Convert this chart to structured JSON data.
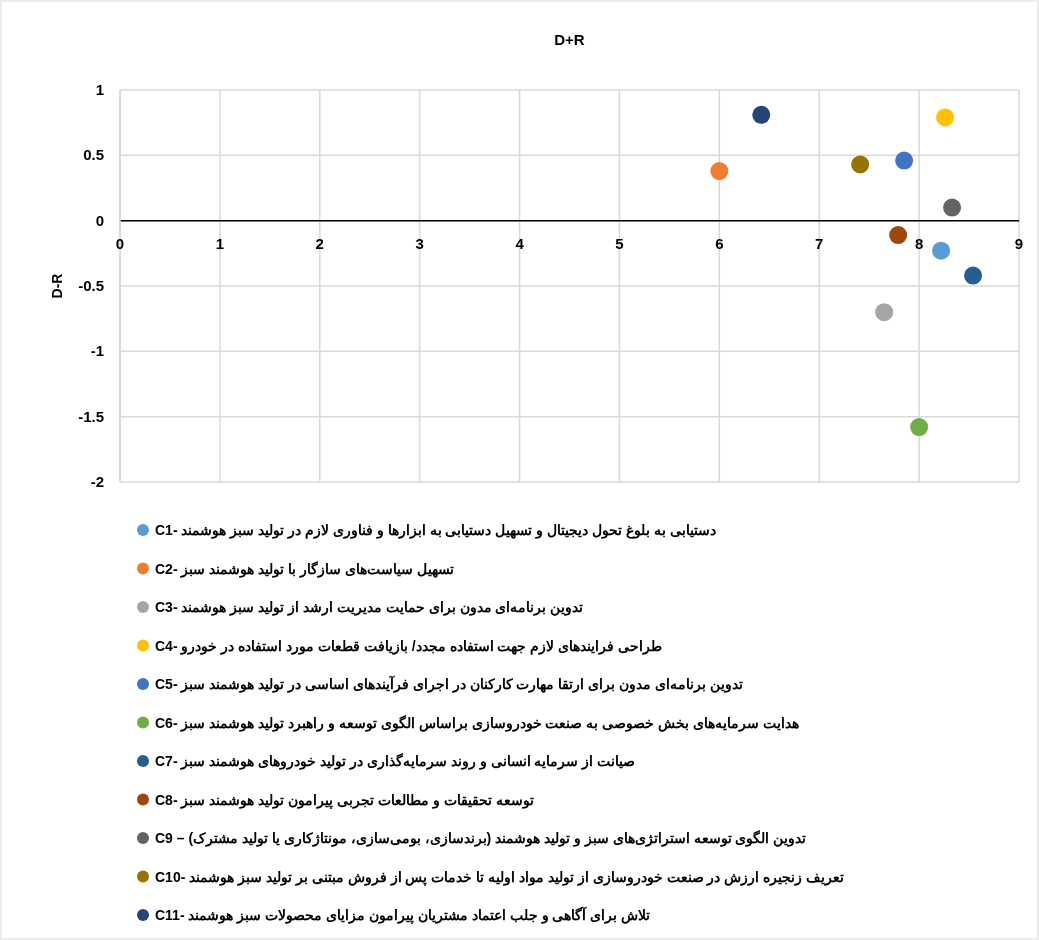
{
  "chart_data": {
    "type": "scatter",
    "title": "D+R",
    "ylabel": "D-R",
    "xlim": [
      0,
      9
    ],
    "xticks": [
      0,
      1,
      2,
      3,
      4,
      5,
      6,
      7,
      8,
      9
    ],
    "ylim": [
      -2,
      1
    ],
    "yticks": [
      -2,
      -1.5,
      -1,
      -0.5,
      0,
      0.5,
      1
    ],
    "grid": true,
    "legend": "bottom",
    "marker": "circle",
    "series": [
      {
        "name": "دستیابی به بلوغ تحول دیجیتال و تسهیل دستیابی به ابزارها و فناوری لازم در تولید سبز هوشمند -C1",
        "color": "#5b9bd5",
        "x": [
          8.22
        ],
        "values": [
          -0.23
        ]
      },
      {
        "name": "تسهیل سیاست‌های سازگار با تولید هوشمند سبز -C2",
        "color": "#ed7d31",
        "x": [
          6.0
        ],
        "values": [
          0.38
        ]
      },
      {
        "name": "تدوین برنامه‌ای مدون برای حمایت مدیریت ارشد از تولید سبز هوشمند -C3",
        "color": "#a5a5a5",
        "x": [
          7.65
        ],
        "values": [
          -0.7
        ]
      },
      {
        "name": "طراحی فرایندهای لازم جهت استفاده مجدد/ بازیافت قطعات مورد استفاده در خودرو -C4",
        "color": "#ffc000",
        "x": [
          8.26
        ],
        "values": [
          0.79
        ]
      },
      {
        "name": "تدوین برنامه‌ای مدون برای ارتقا مهارت کارکنان در اجرای فرآیندهای اساسی در تولید هوشمند سبز -C5",
        "color": "#4472c4",
        "x": [
          7.85
        ],
        "values": [
          0.46
        ]
      },
      {
        "name": "هدایت سرمایه‌های بخش خصوصی به صنعت خودروسازی براساس الگوی توسعه و راهبرد تولید هوشمند سبز -C6",
        "color": "#70ad47",
        "x": [
          8.0
        ],
        "values": [
          -1.58
        ]
      },
      {
        "name": "صیانت از سرمایه انسانی و روند سرمایه‌گذاری در تولید خودروهای هوشمند سبز -C7",
        "color": "#255e91",
        "x": [
          8.54
        ],
        "values": [
          -0.42
        ]
      },
      {
        "name": "توسعه تحقیقات و مطالعات تجربی پیرامون تولید هوشمند سبز -C8",
        "color": "#9e480e",
        "x": [
          7.79
        ],
        "values": [
          -0.11
        ]
      },
      {
        "name": "تدوین الگوی توسعه استراتژی‌های سبز و تولید هوشمند (برندسازی، بومی‌سازی، مونتاژکاری یا تولید مشترک) – C9",
        "color": "#636363",
        "x": [
          8.33
        ],
        "values": [
          0.1
        ]
      },
      {
        "name": "تعریف زنجیره ارزش در صنعت خودروسازی از تولید مواد اولیه تا خدمات پس از فروش مبتنی بر تولید سبز هوشمند -C10",
        "color": "#997300",
        "x": [
          7.41
        ],
        "values": [
          0.43
        ]
      },
      {
        "name": "تلاش برای آگاهی و جلب اعتماد مشتریان پیرامون مزایای محصولات سبز هوشمند -C11",
        "color": "#264478",
        "x": [
          6.42
        ],
        "values": [
          0.81
        ]
      }
    ]
  }
}
